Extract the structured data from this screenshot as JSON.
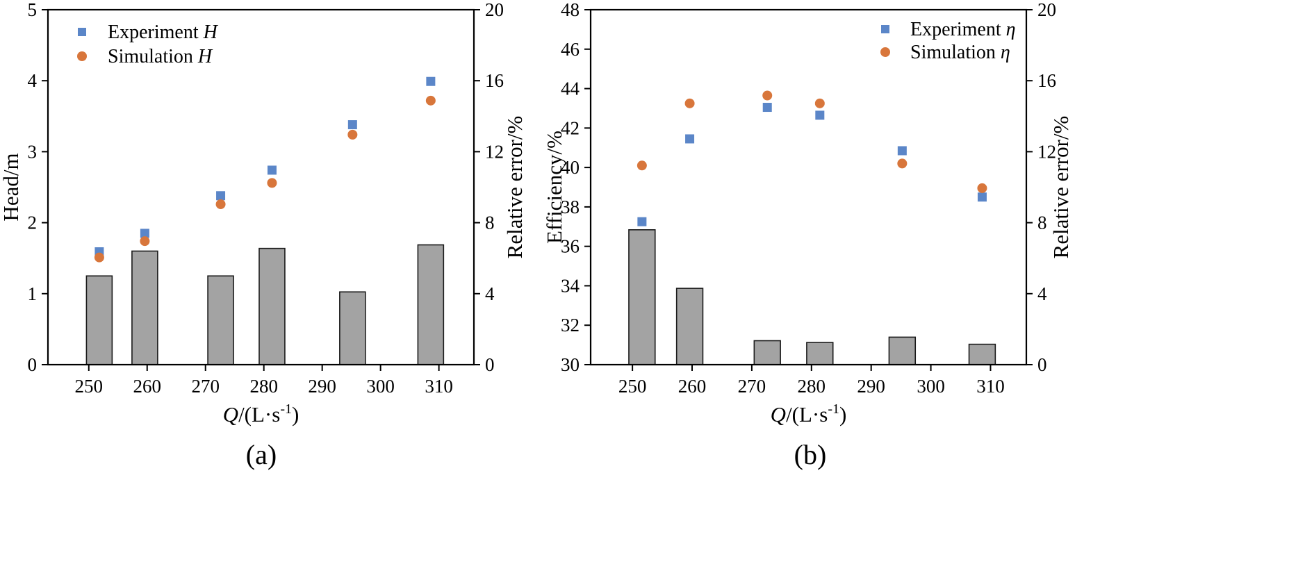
{
  "colors": {
    "experiment": "#5b86c8",
    "simulation": "#d8763b",
    "bar_fill": "#a3a3a3",
    "bar_stroke": "#1a1a1a",
    "axis": "#000000"
  },
  "chart_data": [
    {
      "panel": "a",
      "caption": "(a)",
      "type": "bar+scatter",
      "xlabel": {
        "var": "Q",
        "unit": "/(L·s",
        "sup": "-1",
        "close": ")"
      },
      "ylabel": "Head/m",
      "y2label": "Relative error/%",
      "xlim": [
        243,
        316
      ],
      "ylim": [
        0,
        5
      ],
      "y2lim": [
        0,
        20
      ],
      "xticks": [
        250,
        260,
        270,
        280,
        290,
        300,
        310
      ],
      "yticks": [
        0,
        1,
        2,
        3,
        4,
        5
      ],
      "y2ticks": [
        0,
        4,
        8,
        12,
        16,
        20
      ],
      "legend_position": "top-left",
      "series": [
        {
          "name": "Experiment ",
          "symbol": "H",
          "marker": "square",
          "color": "#5b86c8",
          "x": [
            251.8,
            259.6,
            272.6,
            281.4,
            295.2,
            308.6
          ],
          "y": [
            1.59,
            1.85,
            2.38,
            2.74,
            3.38,
            3.99
          ]
        },
        {
          "name": "Simulation ",
          "symbol": "H",
          "marker": "circle",
          "color": "#d8763b",
          "x": [
            251.8,
            259.6,
            272.6,
            281.4,
            295.2,
            308.6
          ],
          "y": [
            1.51,
            1.74,
            2.26,
            2.56,
            3.24,
            3.72
          ]
        }
      ],
      "bars": {
        "name": "Relative error",
        "axis": "right",
        "x": [
          251.8,
          259.6,
          272.6,
          281.4,
          295.2,
          308.6
        ],
        "width": 4.4,
        "values": [
          5.0,
          6.4,
          5.0,
          6.55,
          4.1,
          6.75
        ]
      }
    },
    {
      "panel": "b",
      "caption": "(b)",
      "type": "bar+scatter",
      "xlabel": {
        "var": "Q",
        "unit": "/(L·s",
        "sup": "-1",
        "close": ")"
      },
      "ylabel": "Efficiency/%",
      "y2label": "Relative error/%",
      "xlim": [
        243,
        316
      ],
      "ylim": [
        30,
        48
      ],
      "y2lim": [
        0,
        20
      ],
      "xticks": [
        250,
        260,
        270,
        280,
        290,
        300,
        310
      ],
      "yticks": [
        30,
        32,
        34,
        36,
        38,
        40,
        42,
        44,
        46,
        48
      ],
      "y2ticks": [
        0,
        4,
        8,
        12,
        16,
        20
      ],
      "legend_position": "top-right",
      "series": [
        {
          "name": "Experiment ",
          "symbol": "η",
          "marker": "square",
          "color": "#5b86c8",
          "x": [
            251.6,
            259.6,
            272.6,
            281.4,
            295.2,
            308.6
          ],
          "y": [
            37.25,
            41.45,
            43.05,
            42.65,
            40.85,
            38.5
          ]
        },
        {
          "name": "Simulation ",
          "symbol": "η",
          "marker": "circle",
          "color": "#d8763b",
          "x": [
            251.6,
            259.6,
            272.6,
            281.4,
            295.2,
            308.6
          ],
          "y": [
            40.1,
            43.25,
            43.65,
            43.25,
            40.2,
            38.95
          ]
        }
      ],
      "bars": {
        "name": "Relative error",
        "axis": "right",
        "x": [
          251.6,
          259.6,
          272.6,
          281.4,
          295.2,
          308.6
        ],
        "width": 4.4,
        "values": [
          7.6,
          4.3,
          1.35,
          1.25,
          1.55,
          1.15
        ]
      }
    }
  ]
}
